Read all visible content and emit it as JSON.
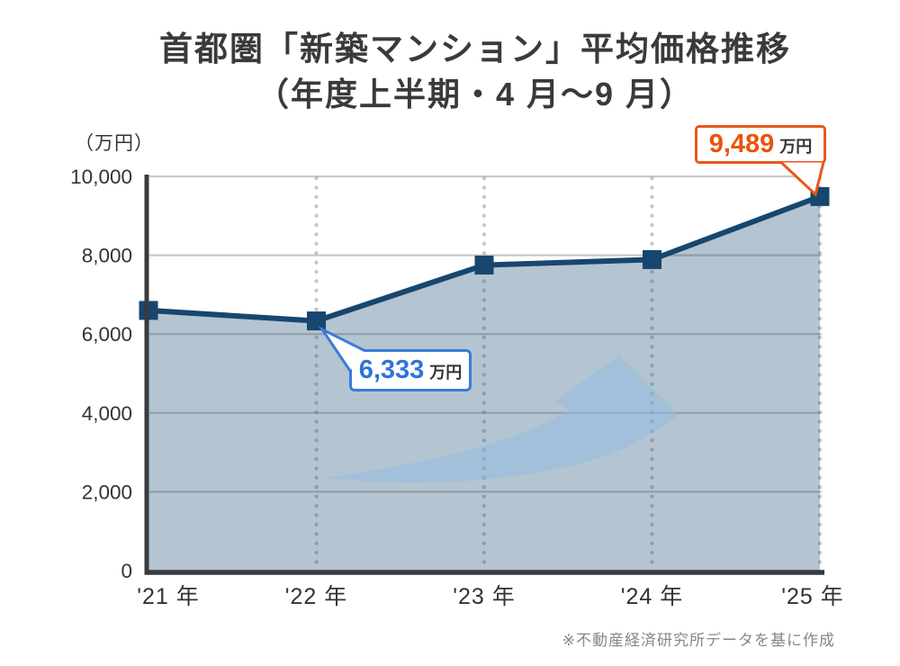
{
  "title": {
    "line1": "首都圏「新築マンション」平均価格推移",
    "line2": "（年度上半期・4 月～9 月）"
  },
  "y_axis": {
    "unit_label": "（万円）",
    "tick_labels": [
      "10,000",
      "8,000",
      "6,000",
      "4,000",
      "2,000",
      "0"
    ]
  },
  "x_axis": {
    "tick_labels": [
      "'21 年",
      "'22 年",
      "'23 年",
      "'24 年",
      "'25 年"
    ]
  },
  "callouts": {
    "low": {
      "value": "6,333",
      "unit": "万円"
    },
    "peak": {
      "value": "9,489",
      "unit": "万円"
    }
  },
  "note": "※不動産経済研究所データを基に作成",
  "colors": {
    "line_navy": "#17466f",
    "area_fill_effective": "#b6c5d2",
    "arrow_watermark": "#a2c0db",
    "gridline": "#c8c8c8",
    "axis": "#3a3a3d",
    "callout_low_border": "#3b7ad9",
    "callout_low_number": "#2e74d9",
    "callout_peak_border": "#ea561e",
    "callout_peak_number": "#e8540e",
    "text_dark": "#333333",
    "note_gray": "#878787"
  },
  "chart_data": {
    "type": "area",
    "title": "首都圏「新築マンション」平均価格推移（年度上半期・4 月～9 月）",
    "categories": [
      "'21 年",
      "'22 年",
      "'23 年",
      "'24 年",
      "'25 年"
    ],
    "values": [
      6600,
      6333,
      7750,
      7890,
      9489
    ],
    "unit": "万円",
    "ylabel": "（万円）",
    "ylim": [
      0,
      10000
    ],
    "ytick_step": 2000,
    "grid": "horizontal solid + vertical dotted",
    "legend": "none",
    "annotations": [
      {
        "category": "'22 年",
        "label": "6,333 万円"
      },
      {
        "category": "'25 年",
        "label": "9,489 万円"
      }
    ],
    "source": "※不動産経済研究所データを基に作成"
  }
}
